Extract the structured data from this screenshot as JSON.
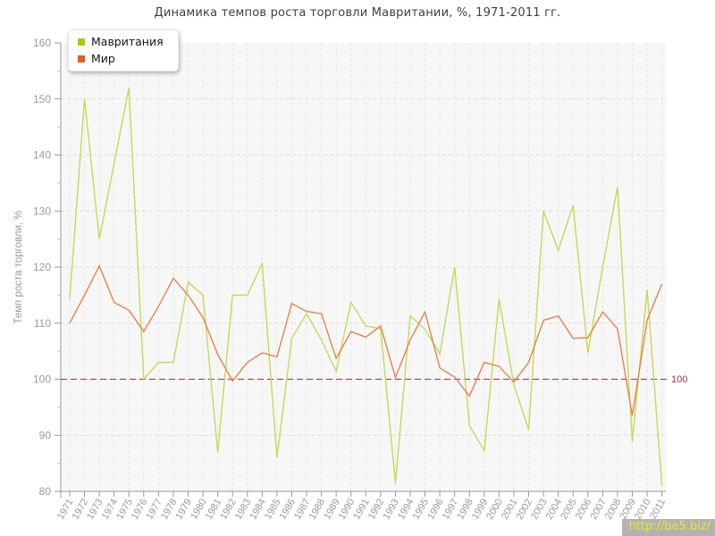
{
  "title": "Динамика темпов роста торговли Мавритании, %, 1971-2011 гг.",
  "legend": {
    "items": [
      {
        "id": "mauritania",
        "label": "Мавритания",
        "color": "#a3cb13"
      },
      {
        "id": "world",
        "label": "Мир",
        "color": "#df5f1d"
      }
    ]
  },
  "watermark": {
    "text": "http://be5.biz/",
    "text_color": "#efe42f",
    "bg_color": "#b2b2b2"
  },
  "chart_data": {
    "type": "line",
    "title": "Динамика темпов роста торговли Мавритании, %, 1971-2011 гг.",
    "xlabel": "",
    "ylabel": "Темп роста торговли, %",
    "ylim": [
      80,
      160
    ],
    "yticks": [
      160,
      150,
      140,
      130,
      120,
      110,
      100,
      90,
      80
    ],
    "grid": true,
    "legend_position": "top-left",
    "x": [
      1971,
      1972,
      1973,
      1974,
      1975,
      1976,
      1977,
      1978,
      1979,
      1980,
      1981,
      1982,
      1983,
      1984,
      1985,
      1986,
      1987,
      1988,
      1989,
      1990,
      1991,
      1992,
      1993,
      1994,
      1995,
      1996,
      1997,
      1998,
      1999,
      2000,
      2001,
      2002,
      2003,
      2004,
      2005,
      2006,
      2007,
      2008,
      2009,
      2010,
      2011
    ],
    "series": [
      {
        "id": "mauritania",
        "name": "Мавритания",
        "color": "#c4da58",
        "values": [
          114.3,
          150,
          125,
          138.5,
          152,
          100,
          103,
          103,
          117.3,
          115,
          87,
          115,
          115,
          120.6,
          86,
          107.3,
          111.7,
          107,
          101.4,
          113.7,
          109.5,
          109,
          81.5,
          111.3,
          108.9,
          104.5,
          120,
          91.7,
          87.3,
          114.3,
          99,
          91,
          130,
          123,
          131,
          104.7,
          120,
          134.3,
          88.8,
          116,
          81
        ]
      },
      {
        "id": "world",
        "name": "Мир",
        "color": "#e8834a",
        "values": [
          110,
          115,
          120.2,
          113.7,
          112.3,
          108.5,
          113,
          118,
          115,
          111,
          104.4,
          99.7,
          103,
          104.7,
          104,
          113.5,
          112.1,
          111.7,
          103.7,
          108.5,
          107.5,
          109.5,
          100.3,
          107,
          112,
          102,
          100.4,
          97,
          103,
          102.3,
          99.5,
          103,
          110.5,
          111.3,
          107.3,
          107.4,
          112,
          109,
          93.5,
          110.5,
          117
        ]
      }
    ],
    "reference_line": {
      "y": 100,
      "label": "100",
      "color": "#993344"
    }
  }
}
